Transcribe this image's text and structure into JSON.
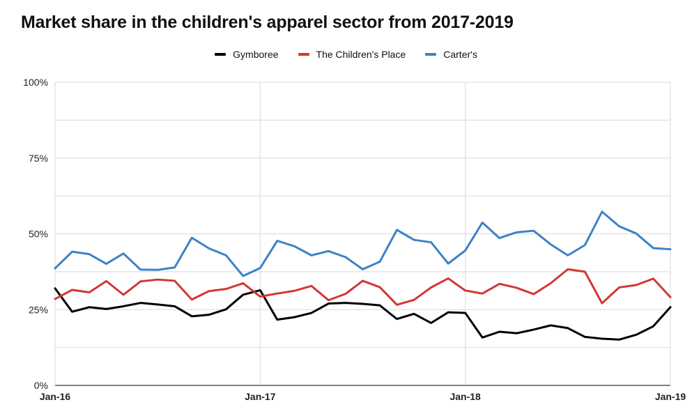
{
  "colors": {
    "background": "#ffffff",
    "gridline": "#d9d9d9",
    "axis_text": "#222222",
    "gymboree": "#000000",
    "childrens_place": "#d23737",
    "carters": "#3c82c6"
  },
  "chart_data": {
    "type": "line",
    "title": "Market share in the children's apparel sector from 2017-2019",
    "xlabel": "",
    "ylabel": "",
    "x_ticks": [
      "Jan-16",
      "Jan-17",
      "Jan-18",
      "Jan-19"
    ],
    "x_months": [
      "Jan-16",
      "Feb-16",
      "Mar-16",
      "Apr-16",
      "May-16",
      "Jun-16",
      "Jul-16",
      "Aug-16",
      "Sep-16",
      "Oct-16",
      "Nov-16",
      "Dec-16",
      "Jan-17",
      "Feb-17",
      "Mar-17",
      "Apr-17",
      "May-17",
      "Jun-17",
      "Jul-17",
      "Aug-17",
      "Sep-17",
      "Oct-17",
      "Nov-17",
      "Dec-17",
      "Jan-18",
      "Feb-18",
      "Mar-18",
      "Apr-18",
      "May-18",
      "Jun-18",
      "Jul-18",
      "Aug-18",
      "Sep-18",
      "Oct-18",
      "Nov-18",
      "Dec-18",
      "Jan-19"
    ],
    "ylim": [
      0,
      100
    ],
    "y_ticks": [
      0,
      25,
      50,
      75,
      100
    ],
    "y_tick_labels": [
      "0%",
      "25%",
      "50%",
      "75%",
      "100%"
    ],
    "y_gridlines_every": 12.5,
    "legend_position": "top-center",
    "series": [
      {
        "name": "Gymboree",
        "color_key": "gymboree",
        "values": [
          32,
          24.3,
          25.8,
          25.2,
          26.1,
          27.2,
          26.7,
          26.1,
          22.8,
          23.3,
          25.1,
          29.9,
          31.4,
          21.7,
          22.5,
          23.9,
          27.0,
          27.2,
          26.9,
          26.4,
          21.9,
          23.6,
          20.6,
          24.1,
          23.9,
          15.8,
          17.7,
          17.2,
          18.4,
          19.8,
          18.9,
          16.0,
          15.4,
          15.1,
          16.7,
          19.5,
          25.8
        ]
      },
      {
        "name": "The Children's Place",
        "color_key": "childrens_place",
        "values": [
          28.5,
          31.5,
          30.7,
          34.4,
          29.9,
          34.3,
          34.9,
          34.5,
          28.3,
          31.1,
          31.8,
          33.7,
          29.3,
          30.3,
          31.2,
          32.8,
          28.1,
          30.2,
          34.5,
          32.4,
          26.6,
          28.2,
          32.3,
          35.3,
          31.3,
          30.3,
          33.5,
          32.2,
          30.1,
          33.7,
          38.3,
          37.5,
          27.1,
          32.3,
          33.1,
          35.2,
          29.1
        ]
      },
      {
        "name": "Carter's",
        "color_key": "carters",
        "values": [
          38.6,
          44.1,
          43.3,
          40.1,
          43.5,
          38.2,
          38.1,
          38.9,
          48.7,
          45.2,
          42.9,
          36.1,
          38.7,
          47.7,
          45.9,
          42.9,
          44.3,
          42.3,
          38.3,
          40.8,
          51.3,
          48.0,
          47.2,
          40.2,
          44.5,
          53.7,
          48.6,
          50.5,
          51.0,
          46.5,
          42.9,
          46.3,
          57.3,
          52.5,
          50.1,
          45.3,
          44.9
        ]
      }
    ]
  }
}
